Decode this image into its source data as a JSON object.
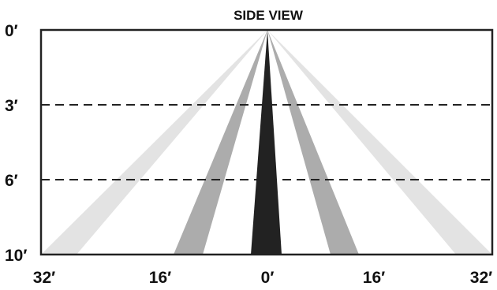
{
  "title": "SIDE VIEW",
  "depth_labels": [
    "0′",
    "3′",
    "6′",
    "10′"
  ],
  "width_labels": [
    "32′",
    "16′",
    "0′",
    "16′",
    "32′"
  ],
  "beams": [
    {
      "name": "outer-beam-left",
      "color": "#e3e3e3"
    },
    {
      "name": "outer-beam-right",
      "color": "#e3e3e3"
    },
    {
      "name": "middle-beam-left",
      "color": "#acacac"
    },
    {
      "name": "middle-beam-right",
      "color": "#acacac"
    },
    {
      "name": "center-beam",
      "color": "#222222"
    }
  ],
  "colors": {
    "frame": "#222222",
    "guide_lines": "#222222",
    "text": "#111111"
  }
}
